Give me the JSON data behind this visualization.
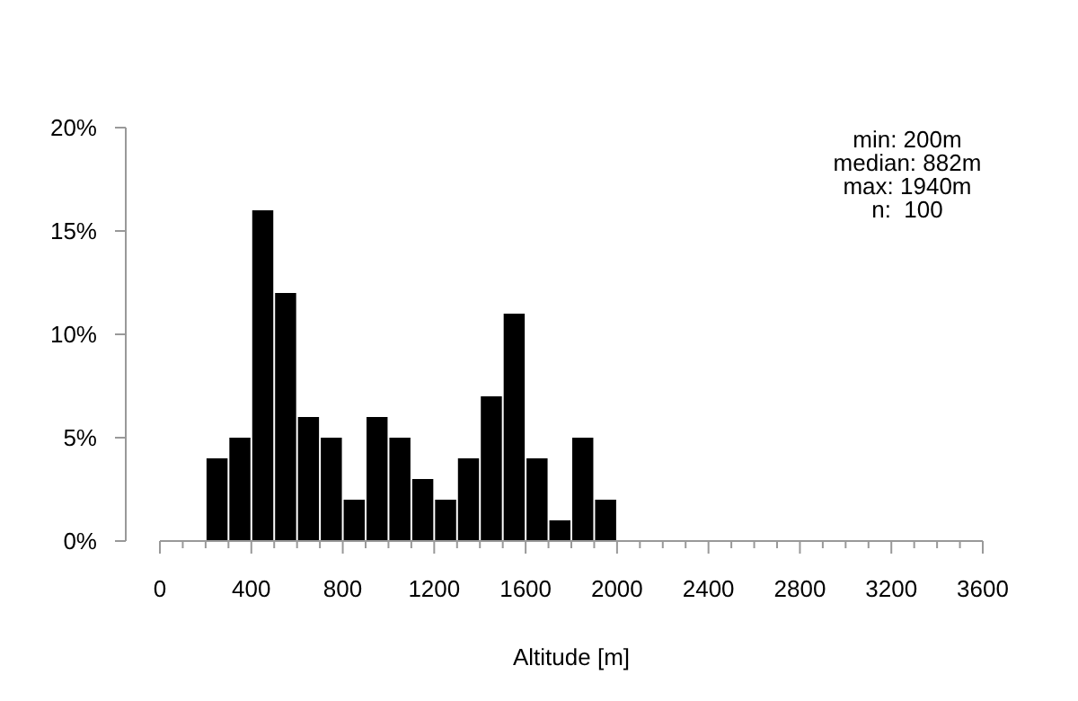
{
  "chart_data": {
    "type": "histogram",
    "xlabel": "Altitude [m]",
    "bins": [
      200,
      300,
      400,
      500,
      600,
      700,
      800,
      900,
      1000,
      1100,
      1200,
      1300,
      1400,
      1500,
      1600,
      1700,
      1800,
      1900,
      2000
    ],
    "values": [
      4,
      5,
      16,
      12,
      6,
      5,
      2,
      6,
      5,
      3,
      2,
      4,
      7,
      11,
      4,
      1,
      5,
      2
    ],
    "color": "#000000",
    "xlim": [
      0,
      3600
    ],
    "xticks": [
      0,
      {
        "value": 100,
        "label": null
      },
      {
        "value": 200,
        "label": null
      },
      {
        "value": 300,
        "label": null
      },
      400,
      {
        "value": 500,
        "label": null
      },
      {
        "value": 600,
        "label": null
      },
      {
        "value": 700,
        "label": null
      },
      800,
      {
        "value": 900,
        "label": null
      },
      {
        "value": 1000,
        "label": null
      },
      {
        "value": 1100,
        "label": null
      },
      1200,
      {
        "value": 1300,
        "label": null
      },
      {
        "value": 1400,
        "label": null
      },
      {
        "value": 1500,
        "label": null
      },
      1600,
      {
        "value": 1700,
        "label": null
      },
      {
        "value": 1800,
        "label": null
      },
      {
        "value": 1900,
        "label": null
      },
      2000,
      {
        "value": 2100,
        "label": null
      },
      {
        "value": 2200,
        "label": null
      },
      {
        "value": 2300,
        "label": null
      },
      2400,
      {
        "value": 2500,
        "label": null
      },
      {
        "value": 2600,
        "label": null
      },
      {
        "value": 2700,
        "label": null
      },
      2800,
      {
        "value": 2900,
        "label": null
      },
      {
        "value": 3000,
        "label": null
      },
      {
        "value": 3100,
        "label": null
      },
      3200,
      {
        "value": 3300,
        "label": null
      },
      {
        "value": 3400,
        "label": null
      },
      {
        "value": 3500,
        "label": null
      },
      3600
    ],
    "ylim": [
      0,
      20
    ],
    "yticks": [
      {
        "value": 0,
        "label": "0%"
      },
      {
        "value": 5,
        "label": "5%"
      },
      {
        "value": 10,
        "label": "10%"
      },
      {
        "value": 15,
        "label": "15%"
      },
      {
        "value": 20,
        "label": "20%"
      }
    ],
    "grid": false,
    "annotations": [
      "min: 200m",
      "median: 882m",
      "max: 1940m",
      "n:  100"
    ]
  }
}
